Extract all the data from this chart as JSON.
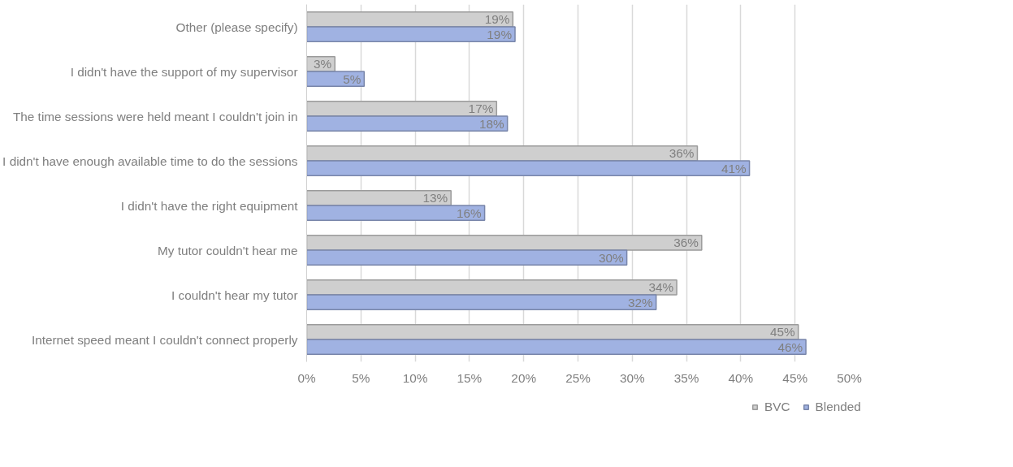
{
  "chart_data": {
    "type": "bar",
    "orientation": "horizontal",
    "categories": [
      "Other (please specify)",
      "I didn't have the support of my supervisor",
      "The time sessions were held meant I couldn't join in",
      "I didn't have enough available time to do the sessions",
      "I didn't have the right equipment",
      "My tutor couldn't hear me",
      "I couldn't hear my tutor",
      "Internet speed meant I couldn't connect properly"
    ],
    "series": [
      {
        "name": "BVC",
        "color": "#cfcfcf",
        "values": [
          19.0,
          2.6,
          17.5,
          36.0,
          13.3,
          36.4,
          34.1,
          45.3
        ],
        "value_labels": [
          "19%",
          "3%",
          "17%",
          "36%",
          "13%",
          "36%",
          "34%",
          "45%"
        ]
      },
      {
        "name": "Blended",
        "color": "#a0b2e2",
        "values": [
          19.2,
          5.3,
          18.5,
          40.8,
          16.4,
          29.5,
          32.2,
          46.0
        ],
        "value_labels": [
          "19%",
          "5%",
          "18%",
          "41%",
          "16%",
          "30%",
          "32%",
          "46%"
        ]
      }
    ],
    "xlim": [
      0,
      50
    ],
    "xticks": [
      {
        "value": 0,
        "label": "0%"
      },
      {
        "value": 5,
        "label": "5%"
      },
      {
        "value": 10,
        "label": "10%"
      },
      {
        "value": 15,
        "label": "15%"
      },
      {
        "value": 20,
        "label": "20%"
      },
      {
        "value": 25,
        "label": "25%"
      },
      {
        "value": 30,
        "label": "30%"
      },
      {
        "value": 35,
        "label": "35%"
      },
      {
        "value": 40,
        "label": "40%"
      },
      {
        "value": 45,
        "label": "45%"
      },
      {
        "value": 50,
        "label": "50%"
      }
    ],
    "grid": "x",
    "legend": "bottom"
  }
}
